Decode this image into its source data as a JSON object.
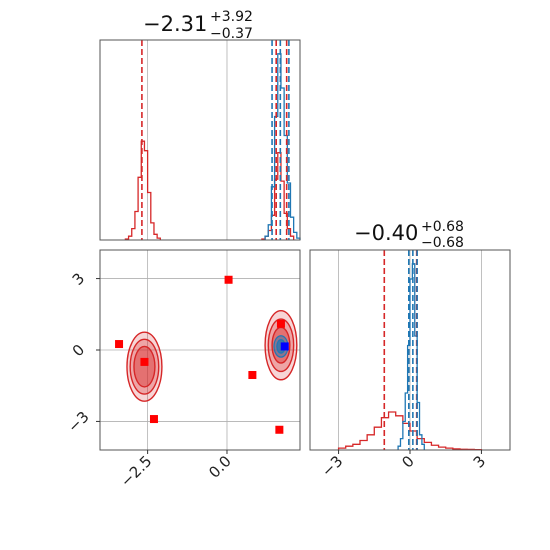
{
  "chart_data": {
    "type": "corner",
    "colors": {
      "red": "#d62728",
      "blue": "#1f77b4",
      "marker_blue": "#0000ff",
      "marker_red": "#ff0000"
    },
    "params": [
      {
        "title_main": "−2.31",
        "title_sup": "+3.92",
        "title_sub": "−0.37",
        "range": [
          -4.0,
          2.3
        ],
        "ticks": [
          {
            "value": -2.5,
            "label": "−2.5"
          },
          {
            "value": 0.0,
            "label": "0.0"
          }
        ]
      },
      {
        "title_main": "−0.40",
        "title_sup": "+0.68",
        "title_sub": "−0.68",
        "range": [
          -4.2,
          4.2
        ],
        "ticks": [
          {
            "value": -3,
            "label": "−3"
          },
          {
            "value": 0,
            "label": "0"
          },
          {
            "value": 3,
            "label": "3"
          }
        ]
      }
    ],
    "marginal_1": {
      "red": {
        "quantile_lines": [
          -2.68,
          1.55,
          1.88
        ],
        "hist": [
          {
            "x": -3.15,
            "density": 0.005
          },
          {
            "x": -3.05,
            "density": 0.02
          },
          {
            "x": -2.95,
            "density": 0.06
          },
          {
            "x": -2.85,
            "density": 0.15
          },
          {
            "x": -2.75,
            "density": 0.33
          },
          {
            "x": -2.65,
            "density": 0.52
          },
          {
            "x": -2.55,
            "density": 0.47
          },
          {
            "x": -2.45,
            "density": 0.25
          },
          {
            "x": -2.35,
            "density": 0.09
          },
          {
            "x": -2.25,
            "density": 0.03
          },
          {
            "x": -2.15,
            "density": 0.01
          },
          {
            "x": 1.15,
            "density": 0.005
          },
          {
            "x": 1.25,
            "density": 0.02
          },
          {
            "x": 1.35,
            "density": 0.05
          },
          {
            "x": 1.45,
            "density": 0.13
          },
          {
            "x": 1.55,
            "density": 0.32
          },
          {
            "x": 1.65,
            "density": 0.46
          },
          {
            "x": 1.75,
            "density": 0.31
          },
          {
            "x": 1.85,
            "density": 0.14
          },
          {
            "x": 1.95,
            "density": 0.06
          },
          {
            "x": 2.05,
            "density": 0.02
          }
        ]
      },
      "blue": {
        "quantile_lines": [
          1.42,
          1.68,
          1.95
        ],
        "hist": [
          {
            "x": 1.25,
            "density": 0.02
          },
          {
            "x": 1.35,
            "density": 0.08
          },
          {
            "x": 1.45,
            "density": 0.28
          },
          {
            "x": 1.55,
            "density": 0.65
          },
          {
            "x": 1.65,
            "density": 0.98
          },
          {
            "x": 1.75,
            "density": 0.8
          },
          {
            "x": 1.85,
            "density": 0.55
          },
          {
            "x": 1.95,
            "density": 0.3
          },
          {
            "x": 2.05,
            "density": 0.12
          },
          {
            "x": 2.15,
            "density": 0.04
          },
          {
            "x": 2.25,
            "density": 0.01
          }
        ]
      }
    },
    "marginal_2": {
      "red": {
        "quantile_lines": [
          -1.08,
          0.28
        ],
        "hist": [
          {
            "x": -2.85,
            "density": 0.01
          },
          {
            "x": -2.55,
            "density": 0.02
          },
          {
            "x": -2.25,
            "density": 0.03
          },
          {
            "x": -1.95,
            "density": 0.05
          },
          {
            "x": -1.65,
            "density": 0.08
          },
          {
            "x": -1.35,
            "density": 0.12
          },
          {
            "x": -1.05,
            "density": 0.17
          },
          {
            "x": -0.75,
            "density": 0.2
          },
          {
            "x": -0.45,
            "density": 0.18
          },
          {
            "x": -0.15,
            "density": 0.14
          },
          {
            "x": 0.15,
            "density": 0.1
          },
          {
            "x": 0.45,
            "density": 0.06
          },
          {
            "x": 0.75,
            "density": 0.04
          },
          {
            "x": 1.05,
            "density": 0.025
          },
          {
            "x": 1.35,
            "density": 0.015
          },
          {
            "x": 1.65,
            "density": 0.01
          },
          {
            "x": 1.95,
            "density": 0.006
          },
          {
            "x": 2.25,
            "density": 0.004
          },
          {
            "x": 2.55,
            "density": 0.003
          },
          {
            "x": 2.85,
            "density": 0.002
          }
        ]
      },
      "blue": {
        "quantile_lines": [
          -0.05,
          0.12,
          0.3
        ],
        "hist": [
          {
            "x": -0.45,
            "density": 0.02
          },
          {
            "x": -0.35,
            "density": 0.06
          },
          {
            "x": -0.25,
            "density": 0.15
          },
          {
            "x": -0.15,
            "density": 0.3
          },
          {
            "x": -0.05,
            "density": 0.55
          },
          {
            "x": 0.05,
            "density": 0.9
          },
          {
            "x": 0.15,
            "density": 0.98
          },
          {
            "x": 0.25,
            "density": 0.6
          },
          {
            "x": 0.35,
            "density": 0.25
          },
          {
            "x": 0.45,
            "density": 0.08
          },
          {
            "x": 0.55,
            "density": 0.03
          }
        ]
      }
    },
    "joint": {
      "red_contours": [
        {
          "center": [
            -2.6,
            -0.7
          ],
          "levels": [
            {
              "rx": 0.55,
              "ry": 1.45,
              "opacity": 0.35
            },
            {
              "rx": 0.45,
              "ry": 1.15,
              "opacity": 0.5
            },
            {
              "rx": 0.33,
              "ry": 0.85,
              "opacity": 0.75
            }
          ]
        },
        {
          "center": [
            1.7,
            0.2
          ],
          "levels": [
            {
              "rx": 0.5,
              "ry": 1.45,
              "opacity": 0.35
            },
            {
              "rx": 0.4,
              "ry": 1.1,
              "opacity": 0.5
            },
            {
              "rx": 0.28,
              "ry": 0.75,
              "opacity": 0.75
            }
          ]
        }
      ],
      "blue_contours": [
        {
          "center": [
            1.7,
            0.15
          ],
          "levels": [
            {
              "rx": 0.22,
              "ry": 0.45,
              "opacity": 0.45
            },
            {
              "rx": 0.13,
              "ry": 0.28,
              "opacity": 0.7
            }
          ]
        }
      ],
      "red_markers": [
        {
          "x": 0.05,
          "y": 2.95
        },
        {
          "x": -3.4,
          "y": 0.25
        },
        {
          "x": -2.6,
          "y": -0.5
        },
        {
          "x": -2.3,
          "y": -2.9
        },
        {
          "x": 1.7,
          "y": 1.1
        },
        {
          "x": 0.8,
          "y": -1.05
        },
        {
          "x": 1.65,
          "y": -3.35
        }
      ],
      "blue_markers": [
        {
          "x": 1.82,
          "y": 0.15
        }
      ]
    }
  }
}
